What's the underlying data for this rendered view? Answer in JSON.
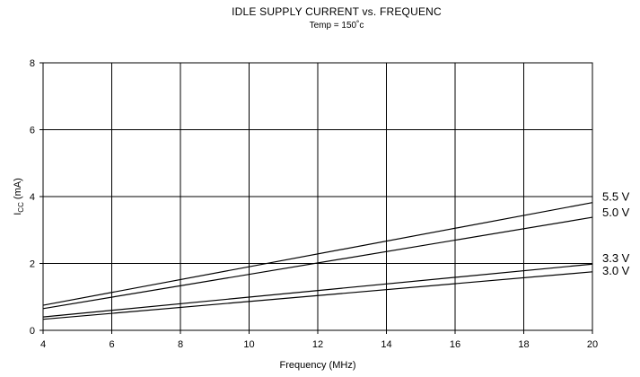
{
  "chart_data": {
    "type": "line",
    "title": "IDLE SUPPLY CURRENT vs. FREQUENC",
    "subtitle": "Temp = 150˚c",
    "xlabel": "Frequency (MHz)",
    "ylabel_main": "I",
    "ylabel_sub": "CC",
    "ylabel_unit": " (mA)",
    "xlim": [
      4,
      20
    ],
    "ylim": [
      0,
      8
    ],
    "x_ticks": [
      4,
      6,
      8,
      10,
      12,
      14,
      16,
      18,
      20
    ],
    "y_ticks": [
      0,
      2,
      4,
      6,
      8
    ],
    "grid": true,
    "legend": "none",
    "series": [
      {
        "name": "5.5 V",
        "x": [
          4,
          20
        ],
        "y": [
          0.75,
          3.82
        ]
      },
      {
        "name": "5.0 V",
        "x": [
          4,
          20
        ],
        "y": [
          0.65,
          3.38
        ]
      },
      {
        "name": "3.3 V",
        "x": [
          4,
          20
        ],
        "y": [
          0.4,
          1.98
        ]
      },
      {
        "name": "3.0 V",
        "x": [
          4,
          20
        ],
        "y": [
          0.33,
          1.75
        ]
      }
    ]
  }
}
